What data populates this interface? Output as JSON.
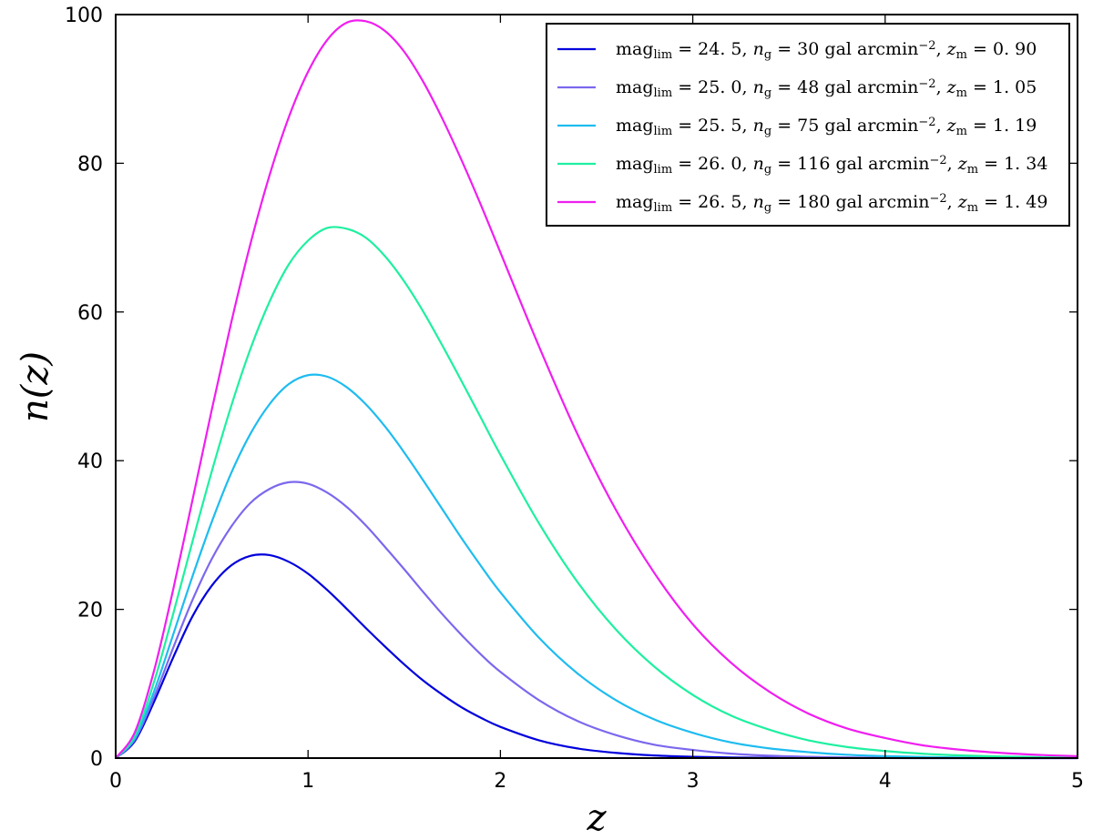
{
  "chart_data": {
    "type": "line",
    "title": "",
    "xlabel": "z",
    "ylabel": "n(z)",
    "xlim": [
      0,
      5
    ],
    "ylim": [
      0,
      100
    ],
    "xticks": [
      "0",
      "1",
      "2",
      "3",
      "4",
      "5"
    ],
    "yticks": [
      "0",
      "20",
      "40",
      "60",
      "80",
      "100"
    ],
    "grid": false,
    "legend_position": "top-right",
    "x": [
      0,
      0.1,
      0.2,
      0.3,
      0.4,
      0.5,
      0.6,
      0.7,
      0.8,
      0.9,
      1.0,
      1.1,
      1.2,
      1.3,
      1.4,
      1.5,
      1.6,
      1.7,
      1.8,
      1.9,
      2.0,
      2.2,
      2.4,
      2.6,
      2.8,
      3.0,
      3.2,
      3.4,
      3.6,
      3.8,
      4.0,
      4.2,
      4.4,
      4.6,
      4.8,
      5.0
    ],
    "series": [
      {
        "name": "mag_lim = 24.5, n_g = 30 gal arcmin^-2, z_m = 0.90",
        "color": "#0000dd",
        "values": [
          0,
          2.3,
          7.6,
          13.6,
          19.1,
          23.2,
          25.9,
          27.2,
          27.3,
          26.4,
          24.8,
          22.6,
          20.1,
          17.5,
          15.0,
          12.6,
          10.4,
          8.5,
          6.8,
          5.4,
          4.2,
          2.4,
          1.3,
          0.7,
          0.35,
          0.17,
          0.08,
          0.04,
          0.02,
          0.01,
          0.005,
          0.002,
          0.001,
          0,
          0,
          0
        ]
      },
      {
        "name": "mag_lim = 25.0, n_g = 48 gal arcmin^-2, z_m = 1.05",
        "color": "#7b68ee",
        "values": [
          0,
          2.5,
          8.2,
          14.9,
          21.3,
          26.8,
          31.1,
          34.3,
          36.2,
          37.1,
          36.9,
          35.7,
          33.8,
          31.3,
          28.4,
          25.4,
          22.3,
          19.3,
          16.5,
          13.9,
          11.6,
          7.8,
          5.0,
          3.1,
          1.8,
          1.1,
          0.6,
          0.32,
          0.17,
          0.09,
          0.04,
          0.02,
          0.01,
          0.005,
          0.002,
          0
        ]
      },
      {
        "name": "mag_lim = 25.5, n_g = 75 gal arcmin^-2, z_m = 1.19",
        "color": "#1ebcf0",
        "values": [
          0,
          2.7,
          9.0,
          16.7,
          24.5,
          31.8,
          38.3,
          43.6,
          47.6,
          50.3,
          51.5,
          51.3,
          49.9,
          47.6,
          44.6,
          41.1,
          37.3,
          33.4,
          29.5,
          25.8,
          22.3,
          16.2,
          11.4,
          7.8,
          5.2,
          3.4,
          2.1,
          1.3,
          0.8,
          0.45,
          0.26,
          0.15,
          0.08,
          0.04,
          0.02,
          0.01
        ]
      },
      {
        "name": "mag_lim = 26.0, n_g = 116 gal arcmin^-2, z_m = 1.34",
        "color": "#1ef0a0",
        "values": [
          0,
          3.0,
          10.3,
          19.5,
          29.2,
          38.6,
          47.3,
          55.0,
          61.4,
          66.4,
          69.6,
          71.3,
          71.2,
          70.0,
          67.5,
          64.1,
          60.0,
          55.4,
          50.6,
          45.7,
          40.8,
          31.6,
          23.7,
          17.3,
          12.3,
          8.5,
          5.7,
          3.8,
          2.4,
          1.5,
          0.95,
          0.58,
          0.35,
          0.21,
          0.12,
          0.07
        ]
      },
      {
        "name": "mag_lim = 26.5, n_g = 180 gal arcmin^-2, z_m = 1.49",
        "color": "#f01ef0",
        "values": [
          0,
          3.5,
          11.8,
          22.8,
          34.8,
          46.9,
          58.5,
          69.1,
          78.4,
          86.2,
          92.3,
          96.6,
          98.9,
          99.1,
          97.8,
          95.0,
          90.9,
          85.9,
          80.3,
          74.3,
          68.0,
          55.4,
          43.6,
          33.4,
          24.9,
          18.0,
          12.8,
          8.9,
          6.0,
          4.0,
          2.7,
          1.7,
          1.1,
          0.7,
          0.43,
          0.26
        ]
      }
    ],
    "legend_entries": [
      {
        "prefix": "mag",
        "sub1": "lim",
        "eq1": " = 24. 5, ",
        "n": "n",
        "sub2": "g",
        "eq2": " = 30 gal arcmin",
        "sup": "−2",
        "zpart": ",   z",
        "sub3": "m",
        "eq3": " = 0. 90"
      },
      {
        "prefix": "mag",
        "sub1": "lim",
        "eq1": " = 25. 0, ",
        "n": "n",
        "sub2": "g",
        "eq2": " = 48 gal arcmin",
        "sup": "−2",
        "zpart": ",   z",
        "sub3": "m",
        "eq3": " = 1. 05"
      },
      {
        "prefix": "mag",
        "sub1": "lim",
        "eq1": " = 25. 5, ",
        "n": "n",
        "sub2": "g",
        "eq2": " = 75 gal arcmin",
        "sup": "−2",
        "zpart": ",   z",
        "sub3": "m",
        "eq3": " = 1. 19"
      },
      {
        "prefix": "mag",
        "sub1": "lim",
        "eq1": " = 26. 0, ",
        "n": "n",
        "sub2": "g",
        "eq2": " = 116 gal arcmin",
        "sup": "−2",
        "zpart": ", z",
        "sub3": "m",
        "eq3": " = 1. 34"
      },
      {
        "prefix": "mag",
        "sub1": "lim",
        "eq1": " = 26. 5, ",
        "n": "n",
        "sub2": "g",
        "eq2": " = 180 gal arcmin",
        "sup": "−2",
        "zpart": ", z",
        "sub3": "m",
        "eq3": " = 1. 49"
      }
    ]
  }
}
